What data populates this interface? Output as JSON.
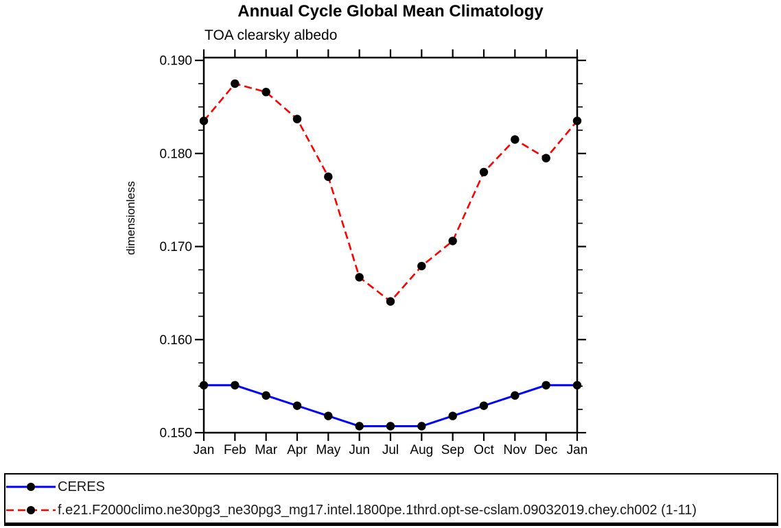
{
  "page": {
    "title": "Annual Cycle Global Mean Climatology",
    "subtitle": "TOA clearsky albedo"
  },
  "chart_data": {
    "type": "line",
    "title": "Annual Cycle Global Mean Climatology",
    "subtitle": "TOA clearsky albedo",
    "xlabel": "",
    "ylabel": "dimensionless",
    "categories": [
      "Jan",
      "Feb",
      "Mar",
      "Apr",
      "May",
      "Jun",
      "Jul",
      "Aug",
      "Sep",
      "Oct",
      "Nov",
      "Dec",
      "Jan"
    ],
    "ylim": [
      0.15,
      0.1903
    ],
    "yticks": [
      0.15,
      0.16,
      0.17,
      0.18,
      0.19
    ],
    "ytick_labels": [
      "0.150",
      "0.160",
      "0.170",
      "0.180",
      "0.190"
    ],
    "minor_tick_step": 0.0025,
    "grid": false,
    "legend_position": "bottom-box",
    "frame_color": "#000000",
    "marker_color": "#000000",
    "series": [
      {
        "name": "CERES",
        "color": "#0000ff",
        "style": "solid",
        "marker": "circle",
        "values": [
          0.1551,
          0.1551,
          0.154,
          0.1529,
          0.1518,
          0.1507,
          0.1507,
          0.1507,
          0.1518,
          0.1529,
          0.154,
          0.1551,
          0.1551
        ]
      },
      {
        "name": "f.e21.F2000climo.ne30pg3_ne30pg3_mg17.intel.1800pe.1thrd.opt-se-cslam.09032019.chey.ch002 (1-11)",
        "color": "#ff0000",
        "style": "dashed",
        "marker": "circle",
        "values": [
          0.1835,
          0.1875,
          0.1866,
          0.1837,
          0.1775,
          0.1667,
          0.1641,
          0.1679,
          0.1706,
          0.178,
          0.1815,
          0.1795,
          0.1835
        ]
      }
    ]
  }
}
